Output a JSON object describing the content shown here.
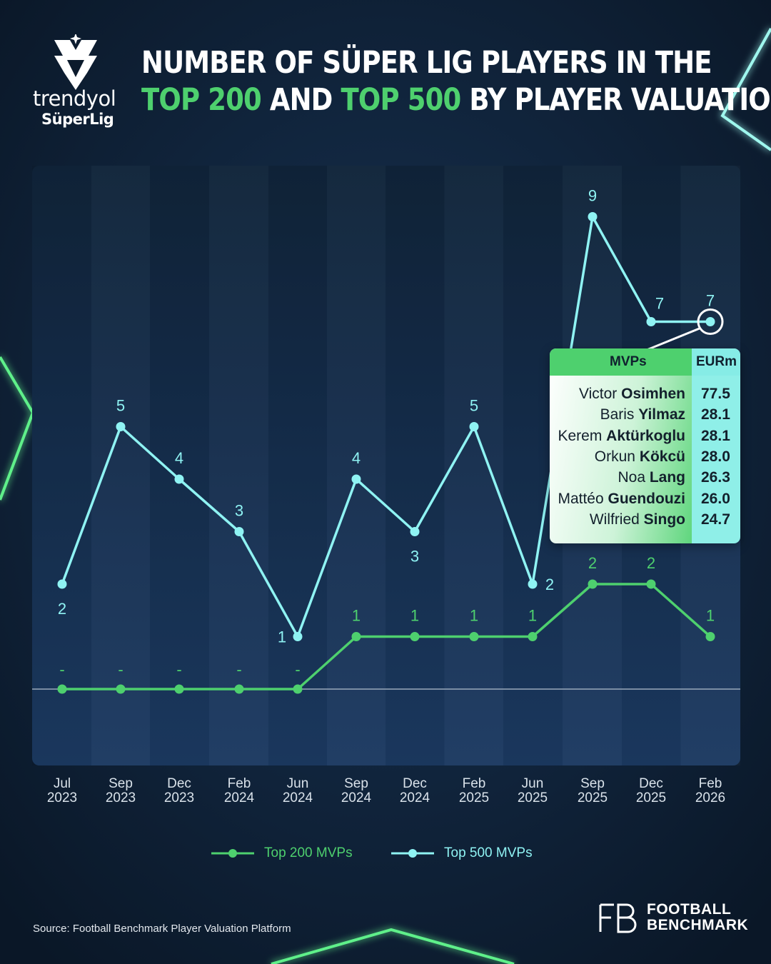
{
  "header": {
    "title_line1": "NUMBER OF SÜPER LIG PLAYERS IN THE",
    "title_hl1": "TOP 200",
    "title_mid": " AND ",
    "title_hl2": "TOP 500",
    "title_end": " BY PLAYER VALUATION"
  },
  "brand": {
    "name": "trendyol",
    "sub": "SüperLig"
  },
  "chart_data": {
    "type": "line",
    "categories": [
      [
        "Jul",
        "2023"
      ],
      [
        "Sep",
        "2023"
      ],
      [
        "Dec",
        "2023"
      ],
      [
        "Feb",
        "2024"
      ],
      [
        "Jun",
        "2024"
      ],
      [
        "Sep",
        "2024"
      ],
      [
        "Dec",
        "2024"
      ],
      [
        "Feb",
        "2025"
      ],
      [
        "Jun",
        "2025"
      ],
      [
        "Sep",
        "2025"
      ],
      [
        "Dec",
        "2025"
      ],
      [
        "Feb",
        "2026"
      ]
    ],
    "series": [
      {
        "name": "Top 200 MVPs",
        "color": "#4ed06e",
        "values": [
          0,
          0,
          0,
          0,
          0,
          1,
          1,
          1,
          1,
          2,
          2,
          1
        ],
        "labels": [
          "-",
          "-",
          "-",
          "-",
          "-",
          "1",
          "1",
          "1",
          "1",
          "2",
          "2",
          "1"
        ]
      },
      {
        "name": "Top 500 MVPs",
        "color": "#8ff3f3",
        "values": [
          2,
          5,
          4,
          3,
          1,
          4,
          3,
          5,
          2,
          9,
          7,
          7
        ],
        "labels": [
          "2",
          "5",
          "4",
          "3",
          "1",
          "4",
          "3",
          "5",
          "2",
          "9",
          "7",
          "7"
        ]
      }
    ],
    "ylim": [
      0,
      9
    ],
    "grid": false,
    "legend": "bottom-center"
  },
  "tooltip": {
    "header_left": "MVPs",
    "header_right": "EURm",
    "rows": [
      {
        "first": "Victor",
        "last": "Osimhen",
        "value": "77.5"
      },
      {
        "first": "Baris",
        "last": "Yilmaz",
        "value": "28.1"
      },
      {
        "first": "Kerem",
        "last": "Aktürkoglu",
        "value": "28.1"
      },
      {
        "first": "Orkun",
        "last": "Kökcü",
        "value": "28.0"
      },
      {
        "first": "Noa",
        "last": "Lang",
        "value": "26.3"
      },
      {
        "first": "Mattéo",
        "last": "Guendouzi",
        "value": "26.0"
      },
      {
        "first": "Wilfried",
        "last": "Singo",
        "value": "24.7"
      }
    ]
  },
  "footer": {
    "source": "Source: Football Benchmark Player Valuation Platform",
    "logo_line1": "FOOTBALL",
    "logo_line2": "BENCHMARK"
  }
}
